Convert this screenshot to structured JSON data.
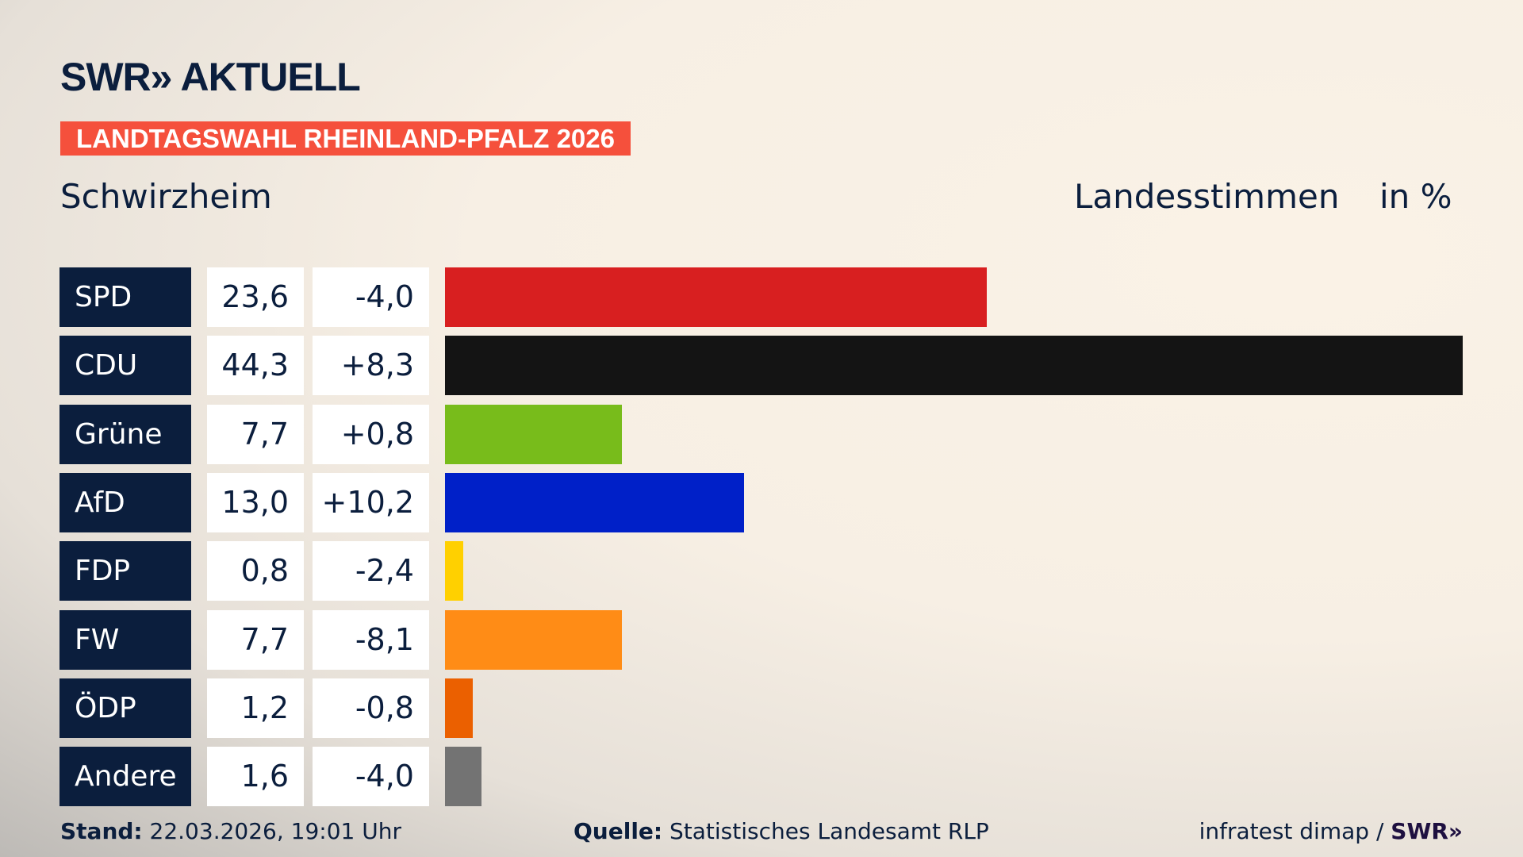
{
  "header": {
    "logo": "SWR» AKTUELL",
    "tag": "LANDTAGSWAHL RHEINLAND-PFALZ 2026",
    "place": "Schwirzheim",
    "measure": "Landesstimmen",
    "unit": "in %"
  },
  "chart_data": {
    "type": "bar",
    "orientation": "horizontal",
    "xlim": [
      0,
      44.3
    ],
    "categories": [
      "SPD",
      "CDU",
      "Grüne",
      "AfD",
      "FDP",
      "FW",
      "ÖDP",
      "Andere"
    ],
    "values_label": [
      "23,6",
      "44,3",
      "7,7",
      "13,0",
      "0,8",
      "7,7",
      "1,2",
      "1,6"
    ],
    "diff_label": [
      "-4,0",
      "+8,3",
      "+0,8",
      "+10,2",
      "-2,4",
      "-8,1",
      "-0,8",
      "-4,0"
    ],
    "values": [
      23.6,
      44.3,
      7.7,
      13.0,
      0.8,
      7.7,
      1.2,
      1.6
    ],
    "diffs": [
      -4.0,
      8.3,
      0.8,
      10.2,
      -2.4,
      -8.1,
      -0.8,
      -4.0
    ],
    "colors": [
      "#d81f20",
      "#141414",
      "#78bc1b",
      "#0020c8",
      "#ffd000",
      "#ff8c16",
      "#eb6000",
      "#737373"
    ]
  },
  "footer": {
    "stand_label": "Stand:",
    "stand_value": "22.03.2026, 19:01 Uhr",
    "source_label": "Quelle:",
    "source_value": "Statistisches Landesamt RLP",
    "credit": "infratest dimap /",
    "credit_logo": "SWR»"
  }
}
